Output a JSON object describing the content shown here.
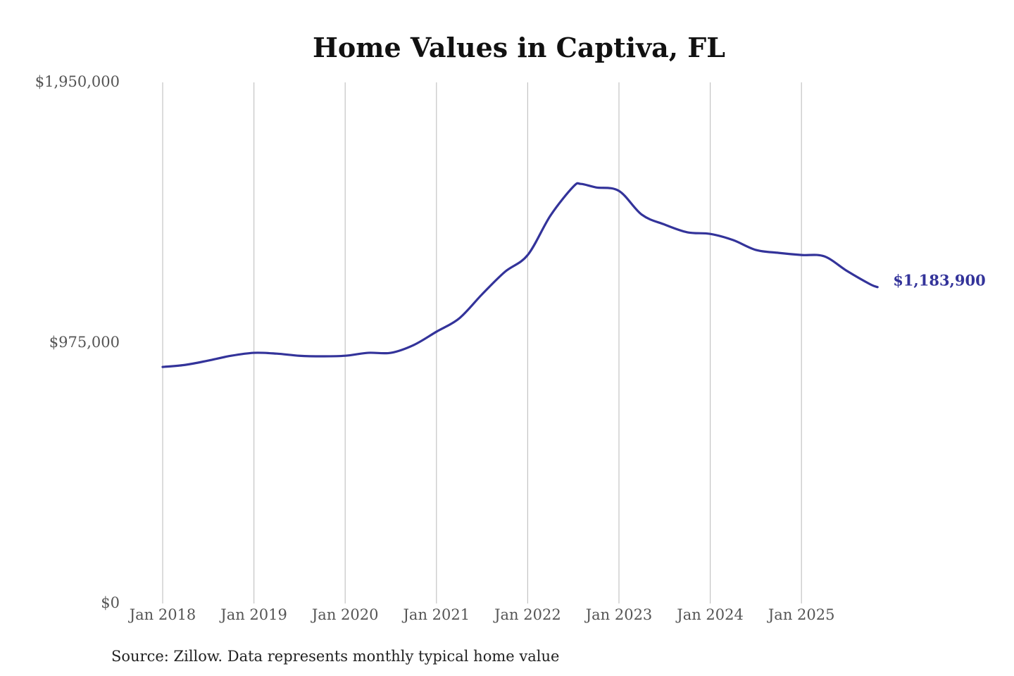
{
  "chart_data": {
    "type": "line",
    "title": "Home Values in Captiva, FL",
    "xlabel": "",
    "ylabel": "",
    "ylim": [
      0,
      1950000
    ],
    "y_ticks": [
      {
        "value": 0,
        "label": "$0"
      },
      {
        "value": 975000,
        "label": "$975,000"
      },
      {
        "value": 1950000,
        "label": "$1,950,000"
      }
    ],
    "x_ticks": [
      {
        "value": "2018-01",
        "label": "Jan 2018"
      },
      {
        "value": "2019-01",
        "label": "Jan 2019"
      },
      {
        "value": "2020-01",
        "label": "Jan 2020"
      },
      {
        "value": "2021-01",
        "label": "Jan 2021"
      },
      {
        "value": "2022-01",
        "label": "Jan 2022"
      },
      {
        "value": "2023-01",
        "label": "Jan 2023"
      },
      {
        "value": "2024-01",
        "label": "Jan 2024"
      },
      {
        "value": "2025-01",
        "label": "Jan 2025"
      }
    ],
    "grid": "vertical",
    "series": [
      {
        "color": "#33339a",
        "end_label": "$1,183,900",
        "points": [
          {
            "x": "2018-01",
            "y": 885000
          },
          {
            "x": "2018-04",
            "y": 893000
          },
          {
            "x": "2018-07",
            "y": 909000
          },
          {
            "x": "2018-10",
            "y": 927000
          },
          {
            "x": "2019-01",
            "y": 938000
          },
          {
            "x": "2019-04",
            "y": 935000
          },
          {
            "x": "2019-07",
            "y": 927000
          },
          {
            "x": "2019-10",
            "y": 925000
          },
          {
            "x": "2020-01",
            "y": 927000
          },
          {
            "x": "2020-04",
            "y": 938000
          },
          {
            "x": "2020-07",
            "y": 938000
          },
          {
            "x": "2020-10",
            "y": 967000
          },
          {
            "x": "2021-01",
            "y": 1017000
          },
          {
            "x": "2021-04",
            "y": 1067000
          },
          {
            "x": "2021-07",
            "y": 1157000
          },
          {
            "x": "2021-10",
            "y": 1241000
          },
          {
            "x": "2022-01",
            "y": 1304000
          },
          {
            "x": "2022-04",
            "y": 1452000
          },
          {
            "x": "2022-07",
            "y": 1560000
          },
          {
            "x": "2022-08",
            "y": 1570000
          },
          {
            "x": "2022-10",
            "y": 1557000
          },
          {
            "x": "2023-01",
            "y": 1544000
          },
          {
            "x": "2023-04",
            "y": 1455000
          },
          {
            "x": "2023-07",
            "y": 1418000
          },
          {
            "x": "2023-10",
            "y": 1389000
          },
          {
            "x": "2024-01",
            "y": 1383000
          },
          {
            "x": "2024-04",
            "y": 1360000
          },
          {
            "x": "2024-07",
            "y": 1323000
          },
          {
            "x": "2024-10",
            "y": 1312000
          },
          {
            "x": "2025-01",
            "y": 1304000
          },
          {
            "x": "2025-04",
            "y": 1299000
          },
          {
            "x": "2025-07",
            "y": 1244000
          },
          {
            "x": "2025-10",
            "y": 1195000
          },
          {
            "x": "2025-11",
            "y": 1183900
          }
        ]
      }
    ],
    "source": "Source: Zillow. Data represents monthly typical home value"
  }
}
